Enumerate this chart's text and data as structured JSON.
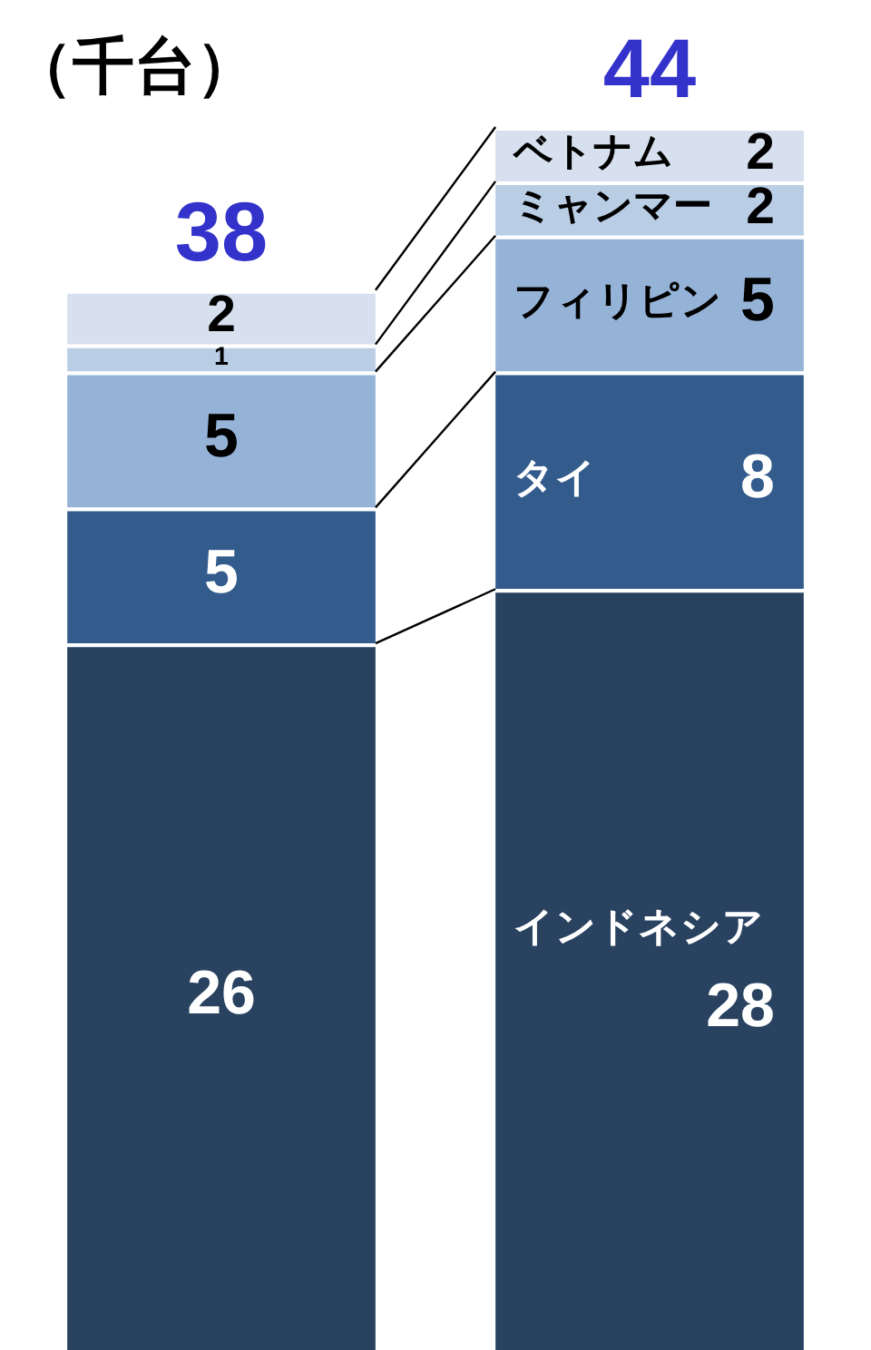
{
  "chart_data": {
    "type": "bar",
    "title": "（千台）",
    "stacked": true,
    "data_labels": true,
    "legend": false,
    "categories": [
      null,
      null
    ],
    "series": [
      {
        "name": "インドネシア",
        "color": "#284260",
        "values": [
          26,
          28
        ]
      },
      {
        "name": "タイ",
        "color": "#335c8c",
        "values": [
          5,
          8
        ]
      },
      {
        "name": "フィリピン",
        "color": "#95b3d7",
        "values": [
          5,
          5
        ]
      },
      {
        "name": "ミャンマー",
        "color": "#b9cde5",
        "values": [
          1,
          2
        ]
      },
      {
        "name": "ベトナム",
        "color": "#d6e0ee",
        "values": [
          2,
          2
        ]
      }
    ],
    "totals": [
      "38",
      "44"
    ]
  }
}
